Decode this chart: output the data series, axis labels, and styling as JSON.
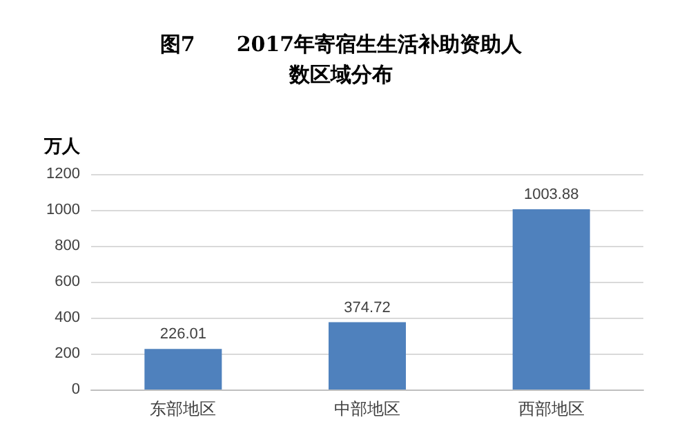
{
  "chart_data": {
    "type": "bar",
    "title": "图7　　2017年寄宿生生活补助资助人数区域分布",
    "ylabel": "万人",
    "categories": [
      "东部地区",
      "中部地区",
      "西部地区"
    ],
    "values": [
      226.01,
      374.72,
      1003.88
    ],
    "color": "#4f81bd",
    "ylim": [
      0,
      1200
    ],
    "yticks": [
      0,
      200,
      400,
      600,
      800,
      1000,
      1200
    ],
    "grid": "y",
    "data_labels": true
  }
}
